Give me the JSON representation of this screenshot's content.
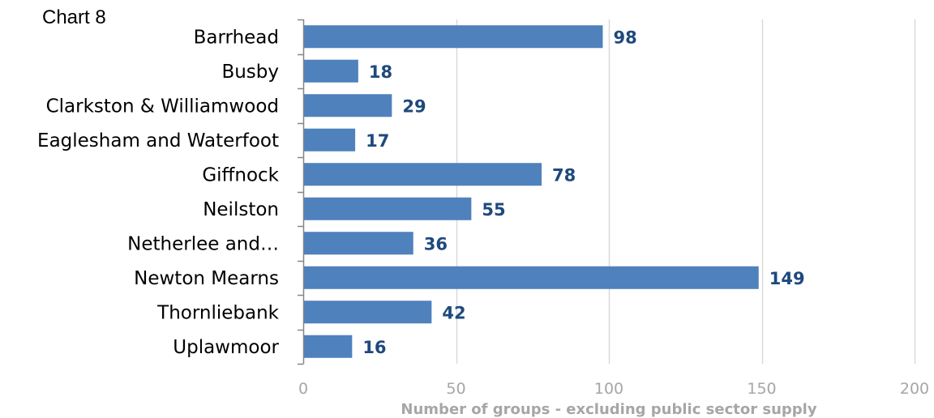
{
  "page_label": "Chart 8",
  "chart_data": {
    "type": "bar",
    "orientation": "horizontal",
    "title": "",
    "xlabel": "Number of groups - excluding public sector supply",
    "ylabel": "",
    "categories": [
      "Barrhead",
      "Busby",
      "Clarkston & Williamwood",
      "Eaglesham and Waterfoot",
      "Giffnock",
      "Neilston",
      "Netherlee and…",
      "Newton Mearns",
      "Thornliebank",
      "Uplawmoor"
    ],
    "values": [
      98,
      18,
      29,
      17,
      78,
      55,
      36,
      149,
      42,
      16
    ],
    "data_labels": [
      "98",
      "18",
      "29",
      "17",
      "78",
      "55",
      "36",
      "149",
      "42",
      "16"
    ],
    "xlim": [
      0,
      200
    ],
    "xticks": [
      0,
      50,
      100,
      150,
      200
    ],
    "xtick_labels": [
      "0",
      "50",
      "100",
      "150",
      "200"
    ],
    "grid": "vertical",
    "legend": "none",
    "colors": {
      "bar": "#4F81BD",
      "data_label": "#1F497D",
      "grid": "#D9D9D9",
      "axis": "#868686",
      "tick_label": "#A6A6A6",
      "axis_title": "#A6A6A6",
      "category_label": "#000000"
    }
  }
}
